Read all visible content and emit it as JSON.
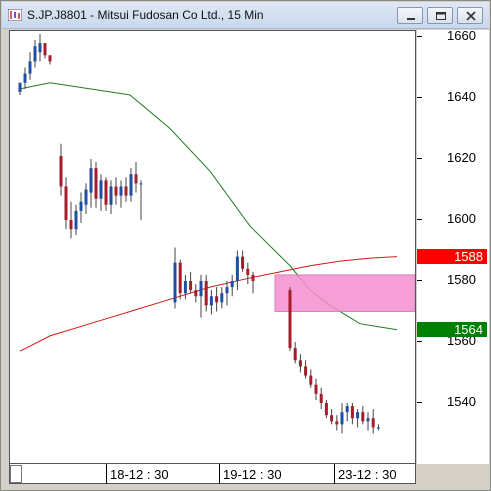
{
  "window": {
    "title": "S.JP.J8801 - Mitsui Fudosan Co Ltd., 15 Min"
  },
  "icons": [
    "chart-app-icon",
    "minimize-icon",
    "maximize-icon",
    "close-icon"
  ],
  "colors": {
    "bull": "#1f4fa3",
    "bear": "#a51c2a",
    "ma_long": "#d11a1a",
    "ma_short": "#1f7a1f",
    "zone": "#f48fcf",
    "last_price_badge": "#ff0000",
    "ma_badge": "#008000"
  },
  "price_axis": {
    "labels": [
      "1660",
      "1640",
      "1620",
      "1600",
      "1580",
      "1560",
      "1540"
    ],
    "values": [
      1660,
      1640,
      1620,
      1600,
      1580,
      1560,
      1540
    ],
    "last_price": "1588",
    "ma_price": "1564"
  },
  "time_axis": {
    "labels": [
      "18-12 : 30",
      "19-12 : 30",
      "23-12 : 30"
    ]
  },
  "chart_data": {
    "type": "candlestick",
    "ylim": [
      1524,
      1668
    ],
    "sessions": [
      {
        "candles": [
          {
            "o": 1642,
            "h": 1645,
            "l": 1641,
            "c": 1645
          },
          {
            "o": 1645,
            "h": 1650,
            "l": 1643,
            "c": 1648
          },
          {
            "o": 1648,
            "h": 1655,
            "l": 1646,
            "c": 1652
          },
          {
            "o": 1652,
            "h": 1659,
            "l": 1650,
            "c": 1657
          },
          {
            "o": 1655,
            "h": 1661,
            "l": 1652,
            "c": 1658
          },
          {
            "o": 1658,
            "h": 1658,
            "l": 1653,
            "c": 1654
          },
          {
            "o": 1654,
            "h": 1654,
            "l": 1651,
            "c": 1652
          }
        ]
      },
      {
        "candles": [
          {
            "o": 1621,
            "h": 1625,
            "l": 1608,
            "c": 1611
          },
          {
            "o": 1611,
            "h": 1614,
            "l": 1597,
            "c": 1600
          },
          {
            "o": 1600,
            "h": 1606,
            "l": 1594,
            "c": 1597
          },
          {
            "o": 1597,
            "h": 1605,
            "l": 1595,
            "c": 1603
          },
          {
            "o": 1603,
            "h": 1609,
            "l": 1599,
            "c": 1606
          },
          {
            "o": 1605,
            "h": 1612,
            "l": 1602,
            "c": 1610
          },
          {
            "o": 1609,
            "h": 1620,
            "l": 1604,
            "c": 1617
          },
          {
            "o": 1617,
            "h": 1619,
            "l": 1604,
            "c": 1607
          },
          {
            "o": 1607,
            "h": 1615,
            "l": 1603,
            "c": 1613
          },
          {
            "o": 1613,
            "h": 1614,
            "l": 1603,
            "c": 1605
          },
          {
            "o": 1605,
            "h": 1613,
            "l": 1602,
            "c": 1611
          },
          {
            "o": 1611,
            "h": 1614,
            "l": 1605,
            "c": 1608
          },
          {
            "o": 1608,
            "h": 1613,
            "l": 1604,
            "c": 1611
          },
          {
            "o": 1611,
            "h": 1614,
            "l": 1606,
            "c": 1608
          },
          {
            "o": 1608,
            "h": 1617,
            "l": 1606,
            "c": 1615
          },
          {
            "o": 1615,
            "h": 1619,
            "l": 1609,
            "c": 1612
          },
          {
            "o": 1612,
            "h": 1613,
            "l": 1600,
            "c": 1612
          }
        ]
      },
      {
        "candles": [
          {
            "o": 1573,
            "h": 1591,
            "l": 1571,
            "c": 1586
          },
          {
            "o": 1586,
            "h": 1587,
            "l": 1574,
            "c": 1576
          },
          {
            "o": 1576,
            "h": 1582,
            "l": 1574,
            "c": 1580
          },
          {
            "o": 1580,
            "h": 1583,
            "l": 1576,
            "c": 1577
          },
          {
            "o": 1577,
            "h": 1579,
            "l": 1573,
            "c": 1575
          },
          {
            "o": 1575,
            "h": 1582,
            "l": 1568,
            "c": 1580
          },
          {
            "o": 1580,
            "h": 1582,
            "l": 1570,
            "c": 1572
          },
          {
            "o": 1572,
            "h": 1577,
            "l": 1569,
            "c": 1575
          },
          {
            "o": 1575,
            "h": 1578,
            "l": 1570,
            "c": 1573
          },
          {
            "o": 1573,
            "h": 1578,
            "l": 1571,
            "c": 1576
          },
          {
            "o": 1576,
            "h": 1580,
            "l": 1572,
            "c": 1578
          },
          {
            "o": 1578,
            "h": 1582,
            "l": 1575,
            "c": 1580
          },
          {
            "o": 1580,
            "h": 1590,
            "l": 1577,
            "c": 1588
          },
          {
            "o": 1588,
            "h": 1590,
            "l": 1583,
            "c": 1584
          },
          {
            "o": 1584,
            "h": 1586,
            "l": 1579,
            "c": 1582
          },
          {
            "o": 1582,
            "h": 1583,
            "l": 1576,
            "c": 1580
          }
        ]
      },
      {
        "candles": [
          {
            "o": 1577,
            "h": 1578,
            "l": 1557,
            "c": 1558
          },
          {
            "o": 1558,
            "h": 1560,
            "l": 1553,
            "c": 1554
          },
          {
            "o": 1554,
            "h": 1556,
            "l": 1550,
            "c": 1552
          },
          {
            "o": 1552,
            "h": 1554,
            "l": 1548,
            "c": 1549
          },
          {
            "o": 1549,
            "h": 1551,
            "l": 1545,
            "c": 1546
          },
          {
            "o": 1546,
            "h": 1548,
            "l": 1541,
            "c": 1543
          },
          {
            "o": 1543,
            "h": 1545,
            "l": 1538,
            "c": 1540
          },
          {
            "o": 1540,
            "h": 1541,
            "l": 1535,
            "c": 1536
          },
          {
            "o": 1536,
            "h": 1538,
            "l": 1533,
            "c": 1534
          },
          {
            "o": 1534,
            "h": 1536,
            "l": 1531,
            "c": 1533
          },
          {
            "o": 1533,
            "h": 1540,
            "l": 1530,
            "c": 1537
          },
          {
            "o": 1537,
            "h": 1540,
            "l": 1534,
            "c": 1539
          },
          {
            "o": 1539,
            "h": 1540,
            "l": 1533,
            "c": 1535
          },
          {
            "o": 1535,
            "h": 1538,
            "l": 1532,
            "c": 1537
          },
          {
            "o": 1537,
            "h": 1539,
            "l": 1533,
            "c": 1534
          },
          {
            "o": 1534,
            "h": 1537,
            "l": 1531,
            "c": 1535
          },
          {
            "o": 1535,
            "h": 1538,
            "l": 1530,
            "c": 1532
          },
          {
            "o": 1532,
            "h": 1533,
            "l": 1531,
            "c": 1532
          }
        ]
      }
    ],
    "ma_long": [
      1557,
      1562,
      1566,
      1570,
      1574,
      1578,
      1581,
      1583,
      1585,
      1586.5,
      1587.5,
      1588
    ],
    "ma_short": [
      1643,
      1645,
      1641,
      1630,
      1616,
      1598,
      1585,
      1577,
      1572,
      1566,
      1564
    ],
    "zone": {
      "top": 1582,
      "bottom": 1570
    }
  }
}
